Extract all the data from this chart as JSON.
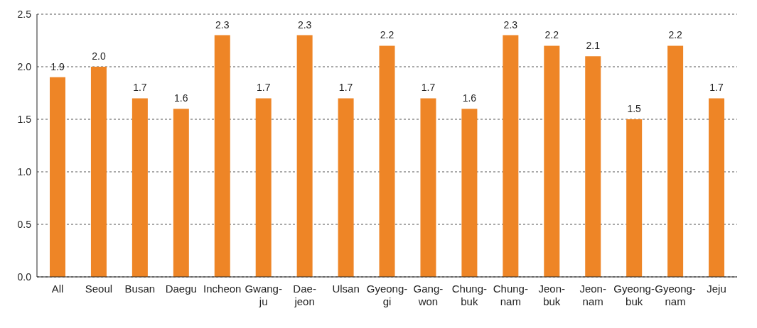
{
  "chart_data": {
    "type": "bar",
    "categories": [
      "All",
      "Seoul",
      "Busan",
      "Daegu",
      "Incheon",
      "Gwang-ju",
      "Dae-jeon",
      "Ulsan",
      "Gyeong-gi",
      "Gang-won",
      "Chung-buk",
      "Chung-nam",
      "Jeon-buk",
      "Jeon-nam",
      "Gyeong-buk",
      "Gyeong-nam",
      "Jeju"
    ],
    "values": [
      1.9,
      2.0,
      1.7,
      1.6,
      2.3,
      1.7,
      2.3,
      1.7,
      2.2,
      1.7,
      1.6,
      2.3,
      2.2,
      2.1,
      1.5,
      2.2,
      1.7
    ],
    "color": "#ee8526",
    "ylim": [
      0,
      2.5
    ],
    "yticks": [
      {
        "value": 0,
        "label": "0.0"
      },
      {
        "value": 0.5,
        "label": "0.5"
      },
      {
        "value": 1,
        "label": "1.0"
      },
      {
        "value": 1.5,
        "label": "1.5"
      },
      {
        "value": 2,
        "label": "2.0"
      },
      {
        "value": 2.5,
        "label": "2.5"
      }
    ],
    "grid": "y",
    "value_labels": [
      "1.9",
      "2.0",
      "1.7",
      "1.6",
      "2.3",
      "1.7",
      "2.3",
      "1.7",
      "2.2",
      "1.7",
      "1.6",
      "2.3",
      "2.2",
      "2.1",
      "1.5",
      "2.2",
      "1.7"
    ]
  }
}
